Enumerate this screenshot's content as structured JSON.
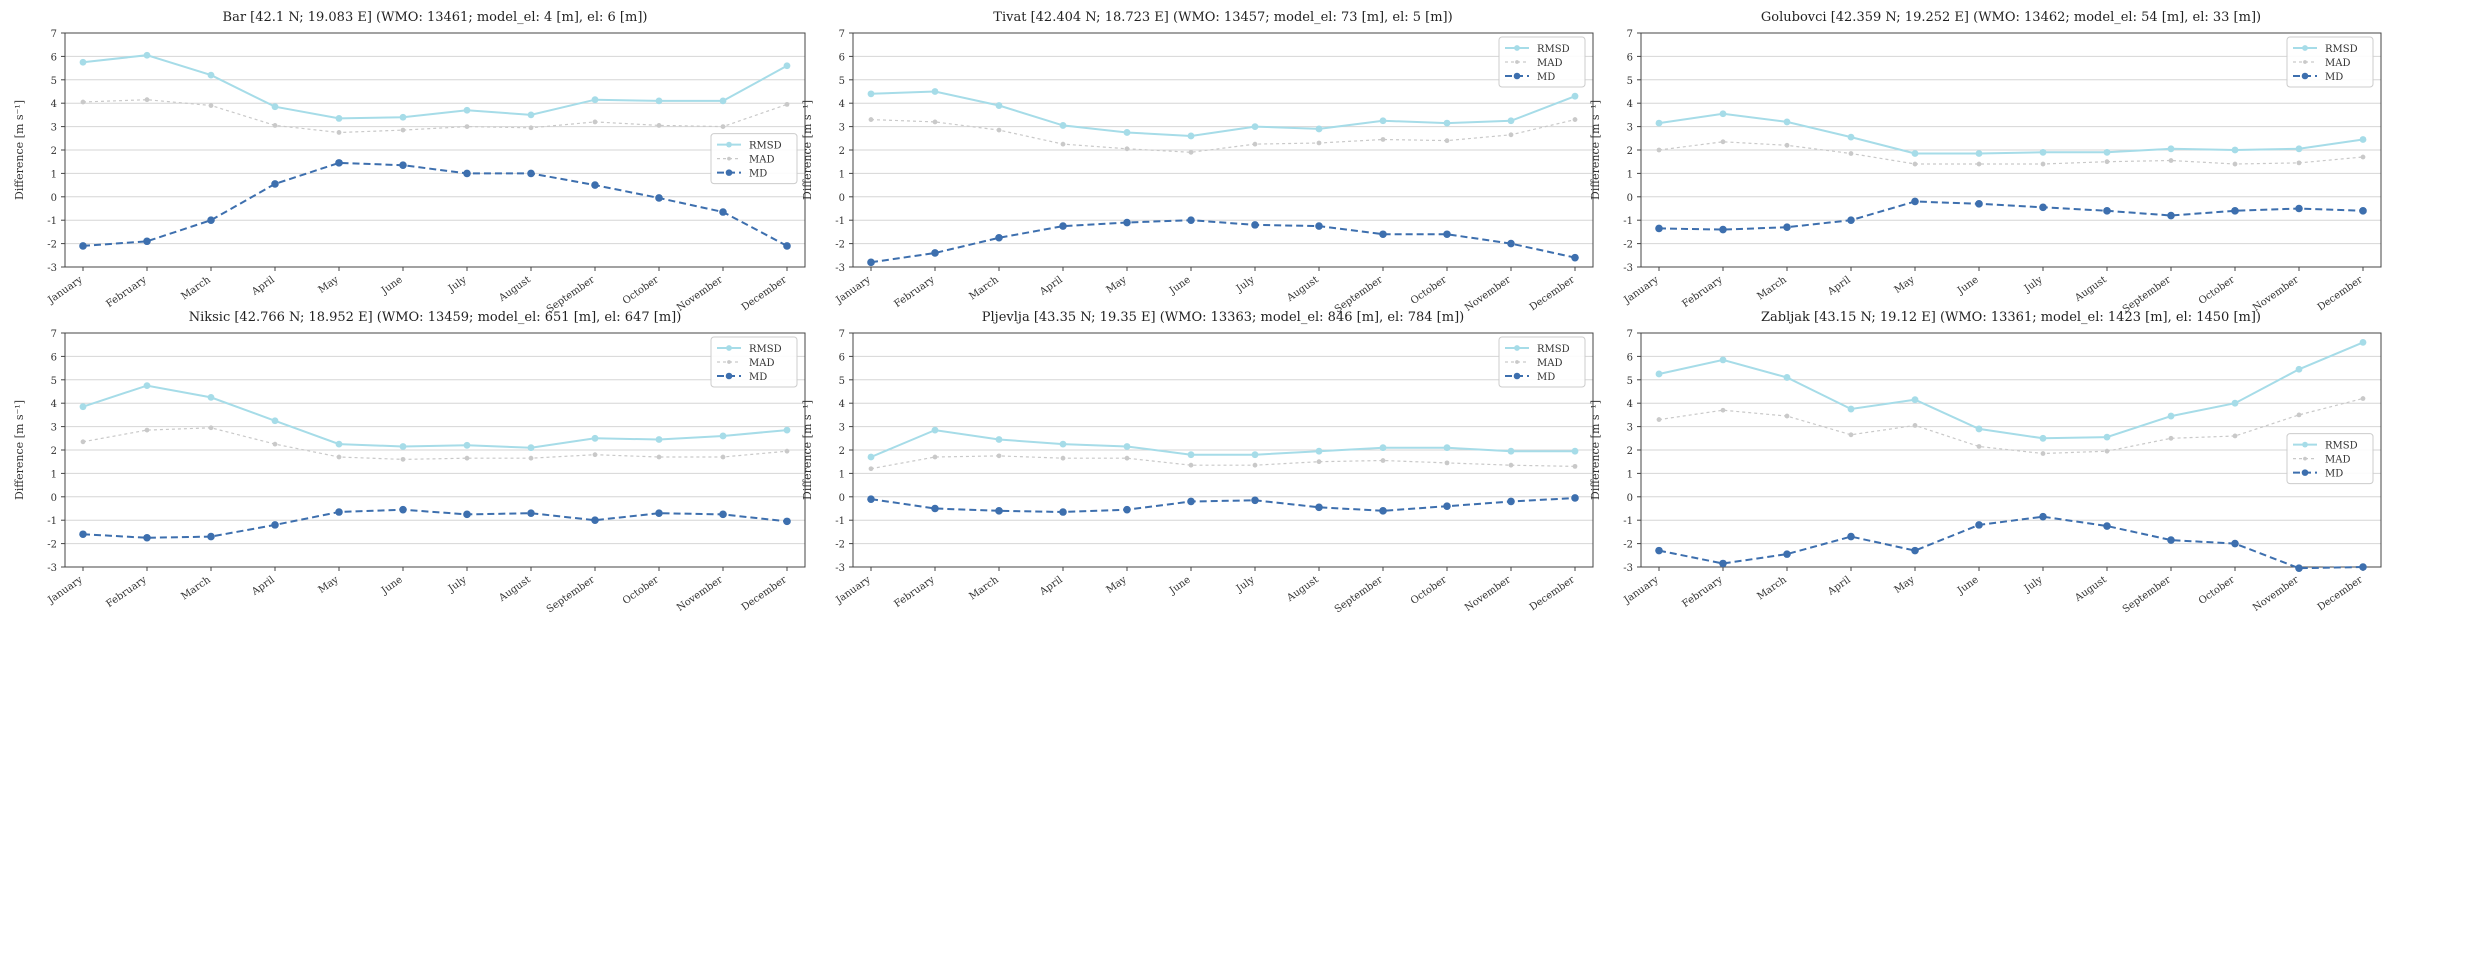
{
  "figure": {
    "months": [
      "January",
      "February",
      "March",
      "April",
      "May",
      "June",
      "July",
      "August",
      "September",
      "October",
      "November",
      "December"
    ]
  },
  "colors": {
    "rmsd": "#a6dce8",
    "mad": "#c9c9c9",
    "md": "#3d6fae",
    "grid": "#d6d6d6",
    "axis": "#444444"
  },
  "chart_data": [
    {
      "type": "line",
      "title": "Bar   [42.1 N; 19.083 E]  (WMO: 13461; model_el: 4 [m], el: 6 [m])",
      "ylabel": "Difference [m s⁻¹]",
      "ylim": [
        -3,
        7
      ],
      "yticks": [
        -3,
        -2,
        -1,
        0,
        1,
        2,
        3,
        4,
        5,
        6,
        7
      ],
      "legend_position": "right-middle",
      "categories": [
        "January",
        "February",
        "March",
        "April",
        "May",
        "June",
        "July",
        "August",
        "September",
        "October",
        "November",
        "December"
      ],
      "series": [
        {
          "name": "RMSD",
          "values": [
            5.75,
            6.05,
            5.2,
            3.85,
            3.35,
            3.4,
            3.7,
            3.5,
            4.15,
            4.1,
            4.1,
            5.6
          ]
        },
        {
          "name": "MAD",
          "values": [
            4.05,
            4.15,
            3.9,
            3.05,
            2.75,
            2.85,
            3.0,
            2.95,
            3.2,
            3.05,
            3.0,
            3.95
          ]
        },
        {
          "name": "MD",
          "values": [
            -2.1,
            -1.9,
            -1.0,
            0.55,
            1.45,
            1.35,
            1.0,
            1.0,
            0.5,
            -0.05,
            -0.65,
            -2.1
          ]
        }
      ]
    },
    {
      "type": "line",
      "title": "Tivat   [42.404 N; 18.723 E]  (WMO: 13457; model_el: 73 [m], el: 5 [m])",
      "ylabel": "Difference [m s⁻¹]",
      "ylim": [
        -3,
        7
      ],
      "yticks": [
        -3,
        -2,
        -1,
        0,
        1,
        2,
        3,
        4,
        5,
        6,
        7
      ],
      "legend_position": "top-right",
      "categories": [
        "January",
        "February",
        "March",
        "April",
        "May",
        "June",
        "July",
        "August",
        "September",
        "October",
        "November",
        "December"
      ],
      "series": [
        {
          "name": "RMSD",
          "values": [
            4.4,
            4.5,
            3.9,
            3.05,
            2.75,
            2.6,
            3.0,
            2.9,
            3.25,
            3.15,
            3.25,
            4.3
          ]
        },
        {
          "name": "MAD",
          "values": [
            3.3,
            3.2,
            2.85,
            2.25,
            2.05,
            1.9,
            2.25,
            2.3,
            2.45,
            2.4,
            2.65,
            3.3
          ]
        },
        {
          "name": "MD",
          "values": [
            -2.8,
            -2.4,
            -1.75,
            -1.25,
            -1.1,
            -1.0,
            -1.2,
            -1.25,
            -1.6,
            -1.6,
            -2.0,
            -2.6
          ]
        }
      ]
    },
    {
      "type": "line",
      "title": "Golubovci   [42.359 N; 19.252 E]  (WMO: 13462; model_el: 54 [m], el: 33 [m])",
      "ylabel": "Difference [m s⁻¹]",
      "ylim": [
        -3,
        7
      ],
      "yticks": [
        -3,
        -2,
        -1,
        0,
        1,
        2,
        3,
        4,
        5,
        6,
        7
      ],
      "legend_position": "top-right",
      "categories": [
        "January",
        "February",
        "March",
        "April",
        "May",
        "June",
        "July",
        "August",
        "September",
        "October",
        "November",
        "December"
      ],
      "series": [
        {
          "name": "RMSD",
          "values": [
            3.15,
            3.55,
            3.2,
            2.55,
            1.85,
            1.85,
            1.9,
            1.9,
            2.05,
            2.0,
            2.05,
            2.45
          ]
        },
        {
          "name": "MAD",
          "values": [
            2.0,
            2.35,
            2.2,
            1.85,
            1.4,
            1.4,
            1.4,
            1.5,
            1.55,
            1.4,
            1.45,
            1.7
          ]
        },
        {
          "name": "MD",
          "values": [
            -1.35,
            -1.4,
            -1.3,
            -1.0,
            -0.2,
            -0.3,
            -0.45,
            -0.6,
            -0.8,
            -0.6,
            -0.5,
            -0.6
          ]
        }
      ]
    },
    {
      "type": "line",
      "title": "Niksic   [42.766 N; 18.952 E]  (WMO: 13459; model_el: 651 [m], el: 647 [m])",
      "ylabel": "Difference [m s⁻¹]",
      "ylim": [
        -3,
        7
      ],
      "yticks": [
        -3,
        -2,
        -1,
        0,
        1,
        2,
        3,
        4,
        5,
        6,
        7
      ],
      "legend_position": "top-right",
      "categories": [
        "January",
        "February",
        "March",
        "April",
        "May",
        "June",
        "July",
        "August",
        "September",
        "October",
        "November",
        "December"
      ],
      "series": [
        {
          "name": "RMSD",
          "values": [
            3.85,
            4.75,
            4.25,
            3.25,
            2.25,
            2.15,
            2.2,
            2.1,
            2.5,
            2.45,
            2.6,
            2.85
          ]
        },
        {
          "name": "MAD",
          "values": [
            2.35,
            2.85,
            2.95,
            2.25,
            1.7,
            1.6,
            1.65,
            1.65,
            1.8,
            1.7,
            1.7,
            1.95
          ]
        },
        {
          "name": "MD",
          "values": [
            -1.6,
            -1.75,
            -1.7,
            -1.2,
            -0.65,
            -0.55,
            -0.75,
            -0.7,
            -1.0,
            -0.7,
            -0.75,
            -1.05
          ]
        }
      ]
    },
    {
      "type": "line",
      "title": "Pljevlja   [43.35 N; 19.35 E]  (WMO: 13363; model_el: 846 [m], el: 784 [m])",
      "ylabel": "Difference [m s⁻¹]",
      "ylim": [
        -3,
        7
      ],
      "yticks": [
        -3,
        -2,
        -1,
        0,
        1,
        2,
        3,
        4,
        5,
        6,
        7
      ],
      "legend_position": "top-right",
      "categories": [
        "January",
        "February",
        "March",
        "April",
        "May",
        "June",
        "July",
        "August",
        "September",
        "October",
        "November",
        "December"
      ],
      "series": [
        {
          "name": "RMSD",
          "values": [
            1.7,
            2.85,
            2.45,
            2.25,
            2.15,
            1.8,
            1.8,
            1.95,
            2.1,
            2.1,
            1.95,
            1.95
          ]
        },
        {
          "name": "MAD",
          "values": [
            1.2,
            1.7,
            1.75,
            1.65,
            1.65,
            1.35,
            1.35,
            1.5,
            1.55,
            1.45,
            1.35,
            1.3
          ]
        },
        {
          "name": "MD",
          "values": [
            -0.1,
            -0.5,
            -0.6,
            -0.65,
            -0.55,
            -0.2,
            -0.15,
            -0.45,
            -0.6,
            -0.4,
            -0.2,
            -0.05
          ]
        }
      ]
    },
    {
      "type": "line",
      "title": "Zabljak   [43.15 N; 19.12 E]  (WMO: 13361; model_el: 1423 [m], el: 1450 [m])",
      "ylabel": "Difference [m s⁻¹]",
      "ylim": [
        -3,
        7
      ],
      "yticks": [
        -3,
        -2,
        -1,
        0,
        1,
        2,
        3,
        4,
        5,
        6,
        7
      ],
      "legend_position": "right-middle",
      "categories": [
        "January",
        "February",
        "March",
        "April",
        "May",
        "June",
        "July",
        "August",
        "September",
        "October",
        "November",
        "December"
      ],
      "series": [
        {
          "name": "RMSD",
          "values": [
            5.25,
            5.85,
            5.1,
            3.75,
            4.15,
            2.9,
            2.5,
            2.55,
            3.45,
            4.0,
            5.45,
            6.6
          ]
        },
        {
          "name": "MAD",
          "values": [
            3.3,
            3.7,
            3.45,
            2.65,
            3.05,
            2.15,
            1.85,
            1.95,
            2.5,
            2.6,
            3.5,
            4.2
          ]
        },
        {
          "name": "MD",
          "values": [
            -2.3,
            -2.85,
            -2.45,
            -1.7,
            -2.3,
            -1.2,
            -0.85,
            -1.25,
            -1.85,
            -2.0,
            -3.05,
            -3.0
          ]
        }
      ]
    }
  ]
}
